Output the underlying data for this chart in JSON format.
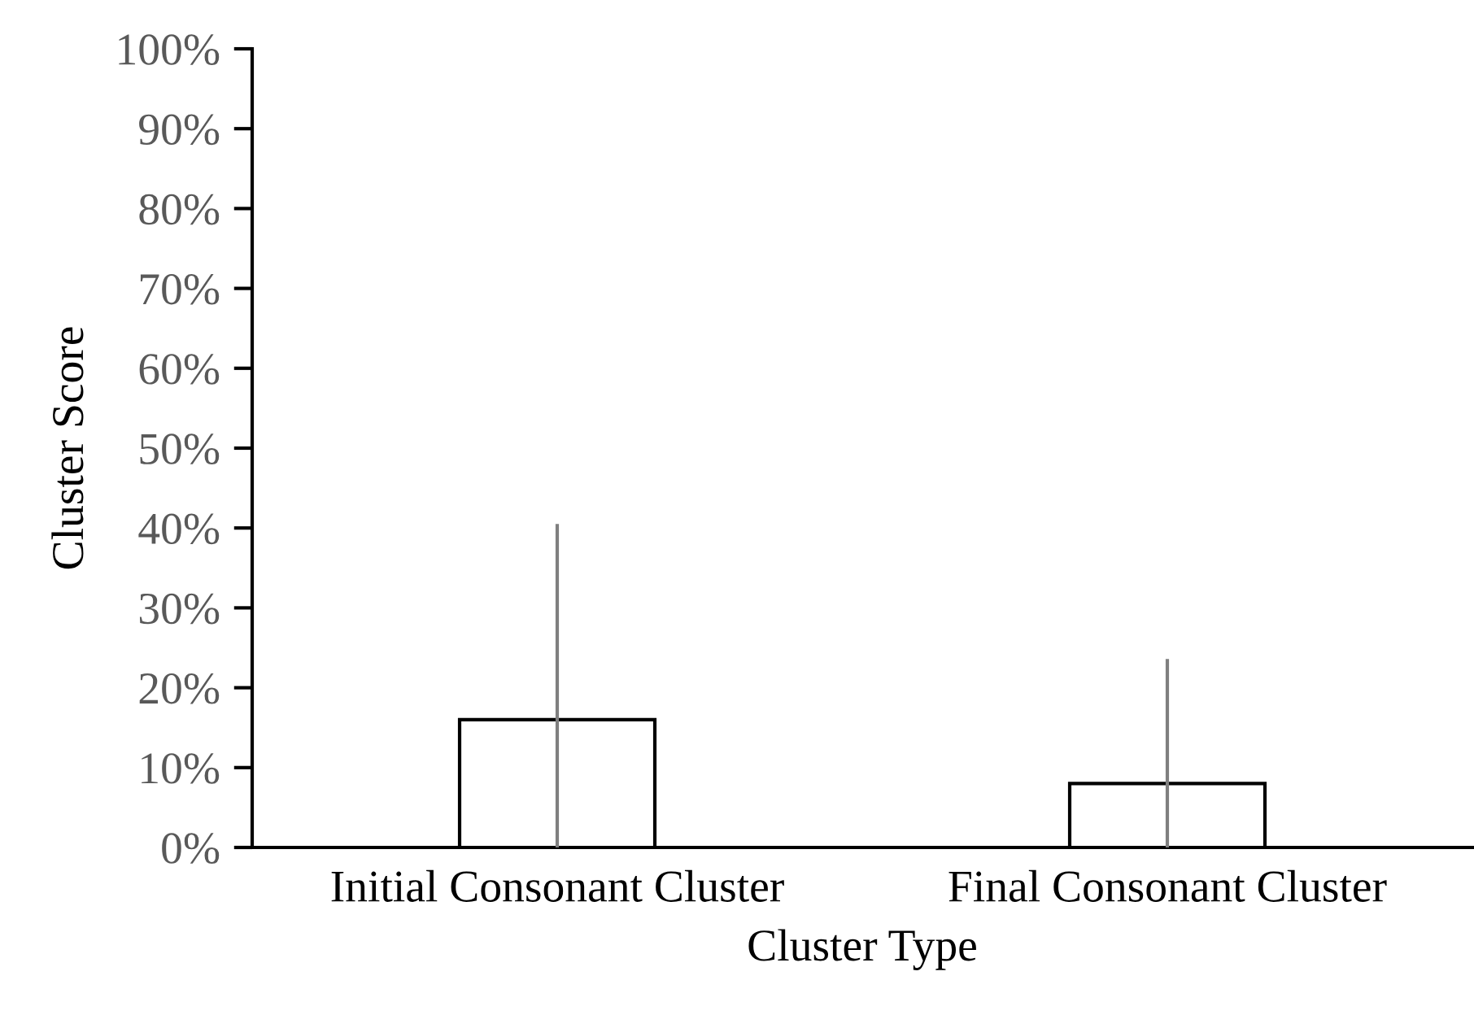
{
  "chart_data": {
    "type": "bar",
    "xlabel": "Cluster Type",
    "ylabel": "Cluster Score",
    "categories": [
      "Initial Consonant Cluster",
      "Final Consonant Cluster"
    ],
    "values": [
      16,
      8
    ],
    "errors": [
      [
        0,
        40.5
      ],
      [
        0,
        23.6
      ]
    ],
    "color": "#ffffff",
    "ylim": [
      0,
      100
    ],
    "yticks": [
      {
        "value": 0,
        "label": "0%"
      },
      {
        "value": 10,
        "label": "10%"
      },
      {
        "value": 20,
        "label": "20%"
      },
      {
        "value": 30,
        "label": "30%"
      },
      {
        "value": 40,
        "label": "40%"
      },
      {
        "value": 50,
        "label": "50%"
      },
      {
        "value": 60,
        "label": "60%"
      },
      {
        "value": 70,
        "label": "70%"
      },
      {
        "value": 80,
        "label": "80%"
      },
      {
        "value": 90,
        "label": "90%"
      },
      {
        "value": 100,
        "label": "100%"
      }
    ],
    "grid": false,
    "legend": false
  }
}
